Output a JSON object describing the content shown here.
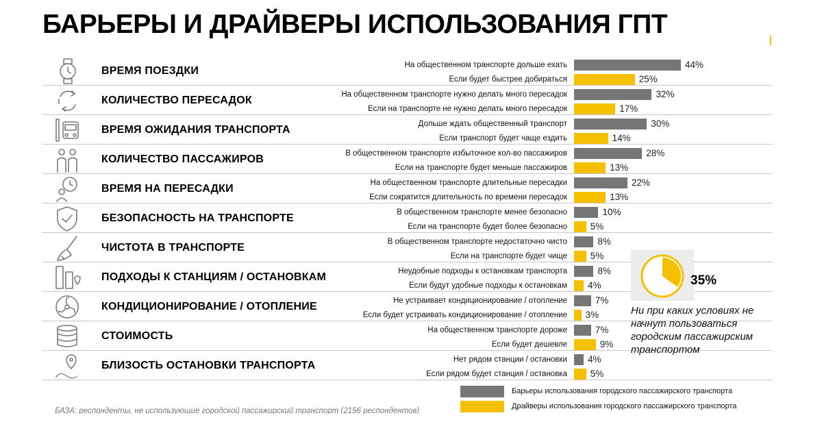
{
  "title": "БАРЬЕРЫ И ДРАЙВЕРЫ ИСПОЛЬЗОВАНИЯ ГПТ",
  "colors": {
    "barrier": "#767676",
    "driver": "#f5c000"
  },
  "chart_data": {
    "type": "bar",
    "orientation": "horizontal",
    "unit": "%",
    "xlim": [
      0,
      44
    ],
    "series": [
      {
        "name": "Барьеры использования городского пассажирского транспорта",
        "color": "#767676"
      },
      {
        "name": "Драйверы использования городского пассажирского транспорта",
        "color": "#f5c000"
      }
    ],
    "factors": [
      {
        "name": "ВРЕМЯ ПОЕЗДКИ",
        "icon": "watch-icon",
        "barrier": {
          "label": "На общественном транспорте дольше ехать",
          "value": 44,
          "display": "44%"
        },
        "driver": {
          "label": "Если будет быстрее добираться",
          "value": 25,
          "display": "25%"
        }
      },
      {
        "name": "КОЛИЧЕСТВО ПЕРЕСАДОК",
        "icon": "cycle-arrows-icon",
        "barrier": {
          "label": "На общественном транспорте нужно делать много пересадок",
          "value": 32,
          "display": "32%"
        },
        "driver": {
          "label": "Если на транспорте не нужно делать много пересадок",
          "value": 17,
          "display": "17%"
        }
      },
      {
        "name": "ВРЕМЯ ОЖИДАНИЯ ТРАНСПОРТА",
        "icon": "bus-stop-icon",
        "barrier": {
          "label": "Дольше ждать общественный транспорт",
          "value": 30,
          "display": "30%"
        },
        "driver": {
          "label": "Если транспорт будет чаще ездить",
          "value": 14,
          "display": "14%"
        }
      },
      {
        "name": "КОЛИЧЕСТВО ПАССАЖИРОВ",
        "icon": "people-icon",
        "barrier": {
          "label": "В общественном транспорте избыточное кол-во пассажиров",
          "value": 28,
          "display": "28%"
        },
        "driver": {
          "label": "Если на транспорте будет меньше пассажиров",
          "value": 13,
          "display": "13%"
        }
      },
      {
        "name": "ВРЕМЯ НА ПЕРЕСАДКИ",
        "icon": "clock-person-icon",
        "barrier": {
          "label": "На общественном транспорте длительные пересадки",
          "value": 22,
          "display": "22%"
        },
        "driver": {
          "label": "Если сократится длительность по времени пересадок",
          "value": 13,
          "display": "13%"
        }
      },
      {
        "name": "БЕЗОПАСНОСТЬ НА ТРАНСПОРТЕ",
        "icon": "shield-check-icon",
        "barrier": {
          "label": "В общественном транспорте менее безопасно",
          "value": 10,
          "display": "10%"
        },
        "driver": {
          "label": "Если на транспорте будет более безопасно",
          "value": 5,
          "display": "5%"
        }
      },
      {
        "name": "ЧИСТОТА В ТРАНСПОРТЕ",
        "icon": "broom-icon",
        "barrier": {
          "label": "В общественном транспорте недостаточно чисто",
          "value": 8,
          "display": "8%"
        },
        "driver": {
          "label": "Если на транспорте будет чище",
          "value": 5,
          "display": "5%"
        }
      },
      {
        "name": "ПОДХОДЫ К СТАНЦИЯМ / ОСТАНОВКАМ",
        "icon": "city-map-icon",
        "barrier": {
          "label": "Неудобные подходы к остановкам транспорта",
          "value": 8,
          "display": "8%"
        },
        "driver": {
          "label": "Если будут удобные подходы к остановкам",
          "value": 4,
          "display": "4%"
        }
      },
      {
        "name": "КОНДИЦИОНИРОВАНИЕ / ОТОПЛЕНИЕ",
        "icon": "fan-icon",
        "barrier": {
          "label": "Не устраивает кондиционирование / отопление",
          "value": 7,
          "display": "7%"
        },
        "driver": {
          "label": "Если будет устраивать кондиционирование / отопление",
          "value": 3,
          "display": "3%"
        }
      },
      {
        "name": "СТОИМОСТЬ",
        "icon": "coins-icon",
        "barrier": {
          "label": "На общественном транспорте дороже",
          "value": 7,
          "display": "7%"
        },
        "driver": {
          "label": "Если будет дешевле",
          "value": 9,
          "display": "9%"
        }
      },
      {
        "name": "БЛИЗОСТЬ ОСТАНОВКИ ТРАНСПОРТА",
        "icon": "location-pin-icon",
        "barrier": {
          "label": "Нет рядом станции / остановки",
          "value": 4,
          "display": "4%"
        },
        "driver": {
          "label": "Если рядом будет станция / остановка",
          "value": 5,
          "display": "5%"
        }
      }
    ],
    "callout": {
      "value": 35,
      "display": "35%",
      "text": "Ни при каких условиях не начнут пользоваться городским пассажирским транспортом"
    }
  },
  "legend": {
    "barrier": "Барьеры использования городского пассажирского транспорта",
    "driver": "Драйверы использования городского пассажирского транспорта"
  },
  "footnote": "БАЗА: респонденты, не использующие городской пассажирский транспорт (2156 респондентов)"
}
